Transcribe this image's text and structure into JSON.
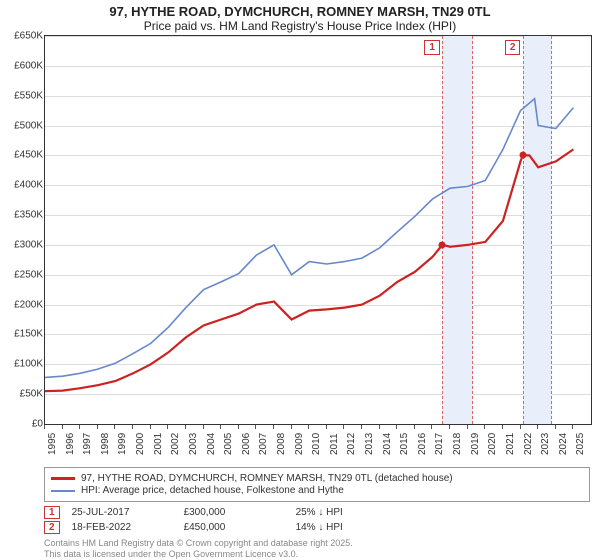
{
  "title": "97, HYTHE ROAD, DYMCHURCH, ROMNEY MARSH, TN29 0TL",
  "subtitle": "Price paid vs. HM Land Registry's House Price Index (HPI)",
  "chart": {
    "type": "line",
    "background_color": "#ffffff",
    "grid_color": "#dddddd",
    "axis_color": "#333333",
    "y": {
      "min": 0,
      "max": 650000,
      "step": 50000,
      "format": "gbp_k",
      "labels": [
        "£0",
        "£50K",
        "£100K",
        "£150K",
        "£200K",
        "£250K",
        "£300K",
        "£350K",
        "£400K",
        "£450K",
        "£500K",
        "£550K",
        "£600K",
        "£650K"
      ]
    },
    "x": {
      "min": 1995,
      "max": 2026,
      "labels": [
        "1995",
        "1996",
        "1997",
        "1998",
        "1999",
        "2000",
        "2001",
        "2002",
        "2003",
        "2004",
        "2005",
        "2006",
        "2007",
        "2008",
        "2009",
        "2010",
        "2011",
        "2012",
        "2013",
        "2014",
        "2015",
        "2016",
        "2017",
        "2018",
        "2019",
        "2020",
        "2021",
        "2022",
        "2023",
        "2024",
        "2025"
      ]
    },
    "series": [
      {
        "id": "price_paid",
        "label": "97, HYTHE ROAD, DYMCHURCH, ROMNEY MARSH, TN29 0TL (detached house)",
        "color": "#cc2222",
        "width": 2.2,
        "data": [
          [
            1995,
            55000
          ],
          [
            1996,
            56000
          ],
          [
            1997,
            60000
          ],
          [
            1998,
            65000
          ],
          [
            1999,
            72000
          ],
          [
            2000,
            85000
          ],
          [
            2001,
            100000
          ],
          [
            2002,
            120000
          ],
          [
            2003,
            145000
          ],
          [
            2004,
            165000
          ],
          [
            2005,
            175000
          ],
          [
            2006,
            185000
          ],
          [
            2007,
            200000
          ],
          [
            2008,
            205000
          ],
          [
            2009,
            175000
          ],
          [
            2010,
            190000
          ],
          [
            2011,
            192000
          ],
          [
            2012,
            195000
          ],
          [
            2013,
            200000
          ],
          [
            2014,
            215000
          ],
          [
            2015,
            238000
          ],
          [
            2016,
            255000
          ],
          [
            2017,
            280000
          ],
          [
            2017.56,
            300000
          ],
          [
            2018,
            297000
          ],
          [
            2019,
            300000
          ],
          [
            2020,
            305000
          ],
          [
            2021,
            340000
          ],
          [
            2022,
            440000
          ],
          [
            2022.13,
            450000
          ],
          [
            2022.5,
            450000
          ],
          [
            2023,
            430000
          ],
          [
            2024,
            440000
          ],
          [
            2025,
            460000
          ]
        ]
      },
      {
        "id": "hpi",
        "label": "HPI: Average price, detached house, Folkestone and Hythe",
        "color": "#6688cc",
        "width": 1.6,
        "data": [
          [
            1995,
            78000
          ],
          [
            1996,
            80000
          ],
          [
            1997,
            85000
          ],
          [
            1998,
            92000
          ],
          [
            1999,
            102000
          ],
          [
            2000,
            118000
          ],
          [
            2001,
            135000
          ],
          [
            2002,
            162000
          ],
          [
            2003,
            195000
          ],
          [
            2004,
            225000
          ],
          [
            2005,
            238000
          ],
          [
            2006,
            252000
          ],
          [
            2007,
            283000
          ],
          [
            2008,
            300000
          ],
          [
            2009,
            250000
          ],
          [
            2010,
            272000
          ],
          [
            2011,
            268000
          ],
          [
            2012,
            272000
          ],
          [
            2013,
            278000
          ],
          [
            2014,
            295000
          ],
          [
            2015,
            322000
          ],
          [
            2016,
            348000
          ],
          [
            2017,
            377000
          ],
          [
            2018,
            395000
          ],
          [
            2019,
            398000
          ],
          [
            2020,
            408000
          ],
          [
            2021,
            460000
          ],
          [
            2022,
            525000
          ],
          [
            2022.8,
            545000
          ],
          [
            2023,
            500000
          ],
          [
            2024,
            495000
          ],
          [
            2025,
            530000
          ]
        ]
      }
    ],
    "sale_points": [
      {
        "x": 2017.56,
        "y": 300000,
        "color": "#cc2222"
      },
      {
        "x": 2022.13,
        "y": 450000,
        "color": "#cc2222"
      }
    ],
    "markers": [
      {
        "tag": "1",
        "x": 2017.56,
        "band_from": 2017.56,
        "band_to": 2019.3
      },
      {
        "tag": "2",
        "x": 2022.13,
        "band_from": 2022.13,
        "band_to": 2023.8
      }
    ]
  },
  "legend": [
    {
      "series": "price_paid"
    },
    {
      "series": "hpi"
    }
  ],
  "events": [
    {
      "tag": "1",
      "date": "25-JUL-2017",
      "price": "£300,000",
      "delta": "25% ↓ HPI"
    },
    {
      "tag": "2",
      "date": "18-FEB-2022",
      "price": "£450,000",
      "delta": "14% ↓ HPI"
    }
  ],
  "attribution": [
    "Contains HM Land Registry data © Crown copyright and database right 2025.",
    "This data is licensed under the Open Government Licence v3.0."
  ]
}
